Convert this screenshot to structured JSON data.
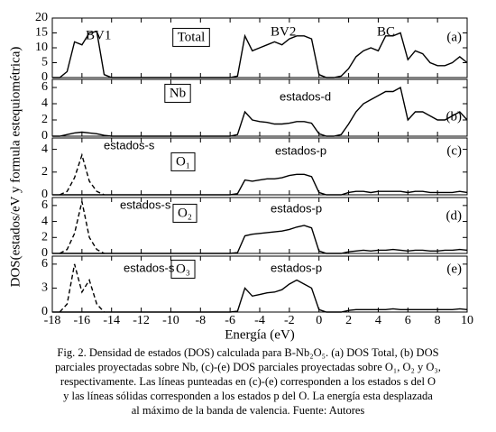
{
  "chart_data": [
    {
      "type": "line",
      "panel_label": "Total",
      "tag": "(a)",
      "annotations": [
        "BV1",
        "BV2",
        "BC"
      ],
      "x": [
        -18,
        -17.5,
        -17,
        -16.5,
        -16,
        -15.5,
        -15,
        -14.5,
        -14,
        -13.5,
        -13,
        -12.5,
        -12,
        -11.5,
        -11,
        -10.5,
        -10,
        -9.5,
        -9,
        -8.5,
        -8,
        -7.5,
        -7,
        -6.5,
        -6,
        -5.5,
        -5,
        -4.5,
        -4,
        -3.5,
        -3,
        -2.5,
        -2,
        -1.5,
        -1,
        -0.5,
        0,
        0.5,
        1,
        1.5,
        2,
        2.5,
        3,
        3.5,
        4,
        4.5,
        5,
        5.5,
        6,
        6.5,
        7,
        7.5,
        8,
        8.5,
        9,
        9.5,
        10
      ],
      "series": [
        {
          "color": "#000000",
          "dash": false,
          "values": [
            0,
            0,
            2,
            12,
            11,
            15,
            15.5,
            1,
            0,
            0,
            0,
            0,
            0,
            0,
            0,
            0,
            0,
            0,
            0,
            0,
            0,
            0,
            0,
            0,
            0,
            0.5,
            14,
            9,
            10,
            11,
            12,
            11,
            13,
            14,
            14,
            13,
            1,
            0,
            0,
            0.5,
            3,
            7,
            9,
            10,
            9,
            14,
            14,
            15,
            6,
            9,
            8,
            5,
            4,
            4,
            5,
            7,
            5
          ]
        }
      ],
      "xlim": [
        -18,
        10
      ],
      "ylim": [
        0,
        20
      ],
      "yticks": [
        0,
        5,
        10,
        15,
        20
      ]
    },
    {
      "type": "line",
      "panel_label": "Nb",
      "tag": "(b)",
      "annotations": [
        "estados-d"
      ],
      "x": [
        -18,
        -17.5,
        -17,
        -16.5,
        -16,
        -15.5,
        -15,
        -14.5,
        -14,
        -13.5,
        -13,
        -12.5,
        -12,
        -11.5,
        -11,
        -10.5,
        -10,
        -9.5,
        -9,
        -8.5,
        -8,
        -7.5,
        -7,
        -6.5,
        -6,
        -5.5,
        -5,
        -4.5,
        -4,
        -3.5,
        -3,
        -2.5,
        -2,
        -1.5,
        -1,
        -0.5,
        0,
        0.5,
        1,
        1.5,
        2,
        2.5,
        3,
        3.5,
        4,
        4.5,
        5,
        5.5,
        6,
        6.5,
        7,
        7.5,
        8,
        8.5,
        9,
        9.5,
        10
      ],
      "series": [
        {
          "color": "#000000",
          "dash": false,
          "values": [
            0,
            0,
            0.2,
            0.4,
            0.5,
            0.4,
            0.3,
            0.1,
            0,
            0,
            0,
            0,
            0,
            0,
            0,
            0,
            0,
            0,
            0,
            0,
            0,
            0,
            0,
            0,
            0,
            0.2,
            3,
            2,
            1.8,
            1.7,
            1.5,
            1.5,
            1.6,
            1.8,
            1.8,
            1.6,
            0.3,
            0,
            0,
            0.2,
            1.5,
            3,
            4,
            4.5,
            5,
            5.5,
            5.5,
            6,
            2,
            3,
            3,
            2.5,
            2,
            2,
            2.5,
            3,
            2
          ]
        }
      ],
      "xlim": [
        -18,
        10
      ],
      "ylim": [
        0,
        7
      ],
      "yticks": [
        0,
        2,
        4,
        6
      ]
    },
    {
      "type": "line",
      "panel_label": "O₁",
      "tag": "(c)",
      "annotations": [
        "estados-s",
        "estados-p"
      ],
      "x": [
        -18,
        -17.5,
        -17,
        -16.5,
        -16,
        -15.5,
        -15,
        -14.5,
        -14,
        -13.5,
        -13,
        -12.5,
        -12,
        -11.5,
        -11,
        -10.5,
        -10,
        -9.5,
        -9,
        -8.5,
        -8,
        -7.5,
        -7,
        -6.5,
        -6,
        -5.5,
        -5,
        -4.5,
        -4,
        -3.5,
        -3,
        -2.5,
        -2,
        -1.5,
        -1,
        -0.5,
        0,
        0.5,
        1,
        1.5,
        2,
        2.5,
        3,
        3.5,
        4,
        4.5,
        5,
        5.5,
        6,
        6.5,
        7,
        7.5,
        8,
        8.5,
        9,
        9.5,
        10
      ],
      "series": [
        {
          "color": "#000000",
          "dash": true,
          "values": [
            null,
            0,
            0.3,
            1.5,
            3.5,
            1.2,
            0.3,
            0,
            null,
            null,
            null,
            null,
            null,
            null,
            null,
            null,
            null,
            null,
            null,
            null,
            null,
            null,
            null,
            null,
            null,
            null,
            null,
            null,
            null,
            null,
            null,
            null,
            null,
            null,
            null,
            null,
            null,
            null,
            null,
            null,
            null,
            null,
            null,
            null,
            null,
            null,
            null,
            null,
            null,
            null,
            null,
            null,
            null,
            null,
            null,
            null,
            null
          ]
        },
        {
          "color": "#000000",
          "dash": false,
          "values": [
            0,
            0,
            0,
            0,
            0,
            0,
            0,
            0,
            0,
            0,
            0,
            0,
            0,
            0,
            0,
            0,
            0,
            0,
            0,
            0,
            0,
            0,
            0,
            0,
            0,
            0.1,
            1.3,
            1.2,
            1.3,
            1.4,
            1.4,
            1.5,
            1.7,
            1.8,
            1.8,
            1.6,
            0.2,
            0,
            0,
            0,
            0.2,
            0.3,
            0.3,
            0.2,
            0.3,
            0.3,
            0.3,
            0.3,
            0.2,
            0.3,
            0.3,
            0.2,
            0.2,
            0.2,
            0.2,
            0.3,
            0.2
          ]
        }
      ],
      "xlim": [
        -18,
        10
      ],
      "ylim": [
        0,
        5
      ],
      "yticks": [
        0,
        2,
        4
      ]
    },
    {
      "type": "line",
      "panel_label": "O₂",
      "tag": "(d)",
      "annotations": [
        "estados-s",
        "estados-p"
      ],
      "x": [
        -18,
        -17.5,
        -17,
        -16.5,
        -16,
        -15.5,
        -15,
        -14.5,
        -14,
        -13.5,
        -13,
        -12.5,
        -12,
        -11.5,
        -11,
        -10.5,
        -10,
        -9.5,
        -9,
        -8.5,
        -8,
        -7.5,
        -7,
        -6.5,
        -6,
        -5.5,
        -5,
        -4.5,
        -4,
        -3.5,
        -3,
        -2.5,
        -2,
        -1.5,
        -1,
        -0.5,
        0,
        0.5,
        1,
        1.5,
        2,
        2.5,
        3,
        3.5,
        4,
        4.5,
        5,
        5.5,
        6,
        6.5,
        7,
        7.5,
        8,
        8.5,
        9,
        9.5,
        10
      ],
      "series": [
        {
          "color": "#000000",
          "dash": true,
          "values": [
            null,
            0,
            0.5,
            2.5,
            6.5,
            2,
            0.5,
            0,
            null,
            null,
            null,
            null,
            null,
            null,
            null,
            null,
            null,
            null,
            null,
            null,
            null,
            null,
            null,
            null,
            null,
            null,
            null,
            null,
            null,
            null,
            null,
            null,
            null,
            null,
            null,
            null,
            null,
            null,
            null,
            null,
            null,
            null,
            null,
            null,
            null,
            null,
            null,
            null,
            null,
            null,
            null,
            null,
            null,
            null,
            null,
            null,
            null
          ]
        },
        {
          "color": "#000000",
          "dash": false,
          "values": [
            0,
            0,
            0,
            0,
            0,
            0,
            0,
            0,
            0,
            0,
            0,
            0,
            0,
            0,
            0,
            0,
            0,
            0,
            0,
            0,
            0,
            0,
            0,
            0,
            0,
            0.1,
            2.2,
            2.4,
            2.5,
            2.6,
            2.7,
            2.8,
            3,
            3.3,
            3.5,
            3.2,
            0.3,
            0,
            0,
            0,
            0.2,
            0.3,
            0.4,
            0.3,
            0.4,
            0.4,
            0.5,
            0.4,
            0.3,
            0.4,
            0.4,
            0.3,
            0.3,
            0.4,
            0.4,
            0.5,
            0.4
          ]
        }
      ],
      "xlim": [
        -18,
        10
      ],
      "ylim": [
        0,
        7
      ],
      "yticks": [
        0,
        2,
        4,
        6
      ]
    },
    {
      "type": "line",
      "panel_label": "O₃",
      "tag": "(e)",
      "annotations": [
        "estados-s",
        "estados-p"
      ],
      "x": [
        -18,
        -17.5,
        -17,
        -16.5,
        -16,
        -15.5,
        -15,
        -14.5,
        -14,
        -13.5,
        -13,
        -12.5,
        -12,
        -11.5,
        -11,
        -10.5,
        -10,
        -9.5,
        -9,
        -8.5,
        -8,
        -7.5,
        -7,
        -6.5,
        -6,
        -5.5,
        -5,
        -4.5,
        -4,
        -3.5,
        -3,
        -2.5,
        -2,
        -1.5,
        -1,
        -0.5,
        0,
        0.5,
        1,
        1.5,
        2,
        2.5,
        3,
        3.5,
        4,
        4.5,
        5,
        5.5,
        6,
        6.5,
        7,
        7.5,
        8,
        8.5,
        9,
        9.5,
        10
      ],
      "series": [
        {
          "color": "#000000",
          "dash": true,
          "values": [
            null,
            0,
            1,
            6,
            2.5,
            4,
            1,
            0,
            null,
            null,
            null,
            null,
            null,
            null,
            null,
            null,
            null,
            null,
            null,
            null,
            null,
            null,
            null,
            null,
            null,
            null,
            null,
            null,
            null,
            null,
            null,
            null,
            null,
            null,
            null,
            null,
            null,
            null,
            null,
            null,
            null,
            null,
            null,
            null,
            null,
            null,
            null,
            null,
            null,
            null,
            null,
            null,
            null,
            null,
            null,
            null,
            null
          ]
        },
        {
          "color": "#000000",
          "dash": false,
          "values": [
            0,
            0,
            0,
            0,
            0,
            0,
            0,
            0,
            0,
            0,
            0,
            0,
            0,
            0,
            0,
            0,
            0,
            0,
            0,
            0,
            0,
            0,
            0,
            0,
            0,
            0.1,
            3,
            2,
            2.2,
            2.4,
            2.5,
            2.8,
            3.5,
            4,
            3.5,
            3,
            0.3,
            0,
            0,
            0,
            0.2,
            0.3,
            0.3,
            0.3,
            0.3,
            0.3,
            0.4,
            0.3,
            0.3,
            0.3,
            0.3,
            0.3,
            0.3,
            0.3,
            0.3,
            0.4,
            0.3
          ]
        }
      ],
      "xlim": [
        -18,
        10
      ],
      "ylim": [
        0,
        7
      ],
      "yticks": [
        0,
        3,
        6
      ],
      "xticks": [
        -18,
        -16,
        -14,
        -12,
        -10,
        -8,
        -6,
        -4,
        -2,
        0,
        2,
        4,
        6,
        8,
        10
      ],
      "xlabel": "Energía (eV)"
    }
  ],
  "figure": {
    "ylabel": "DOS(estados/eV y formula estequiométrica)",
    "caption": [
      "Fig. 2. Densidad de estados (DOS) calculada para B-Nb₂O₅. (a) DOS Total, (b) DOS",
      "parciales proyectadas sobre Nb, (c)-(e) DOS parciales proyectadas sobre O₁, O₂ y O₃,",
      "respectivamente. Las líneas punteadas en (c)-(e) corresponden a los estados s del O",
      "y las líneas sólidas corresponden a los estados p del O. La energía esta desplazada",
      "al máximo de la banda de valencia. Fuente: Autores"
    ]
  }
}
